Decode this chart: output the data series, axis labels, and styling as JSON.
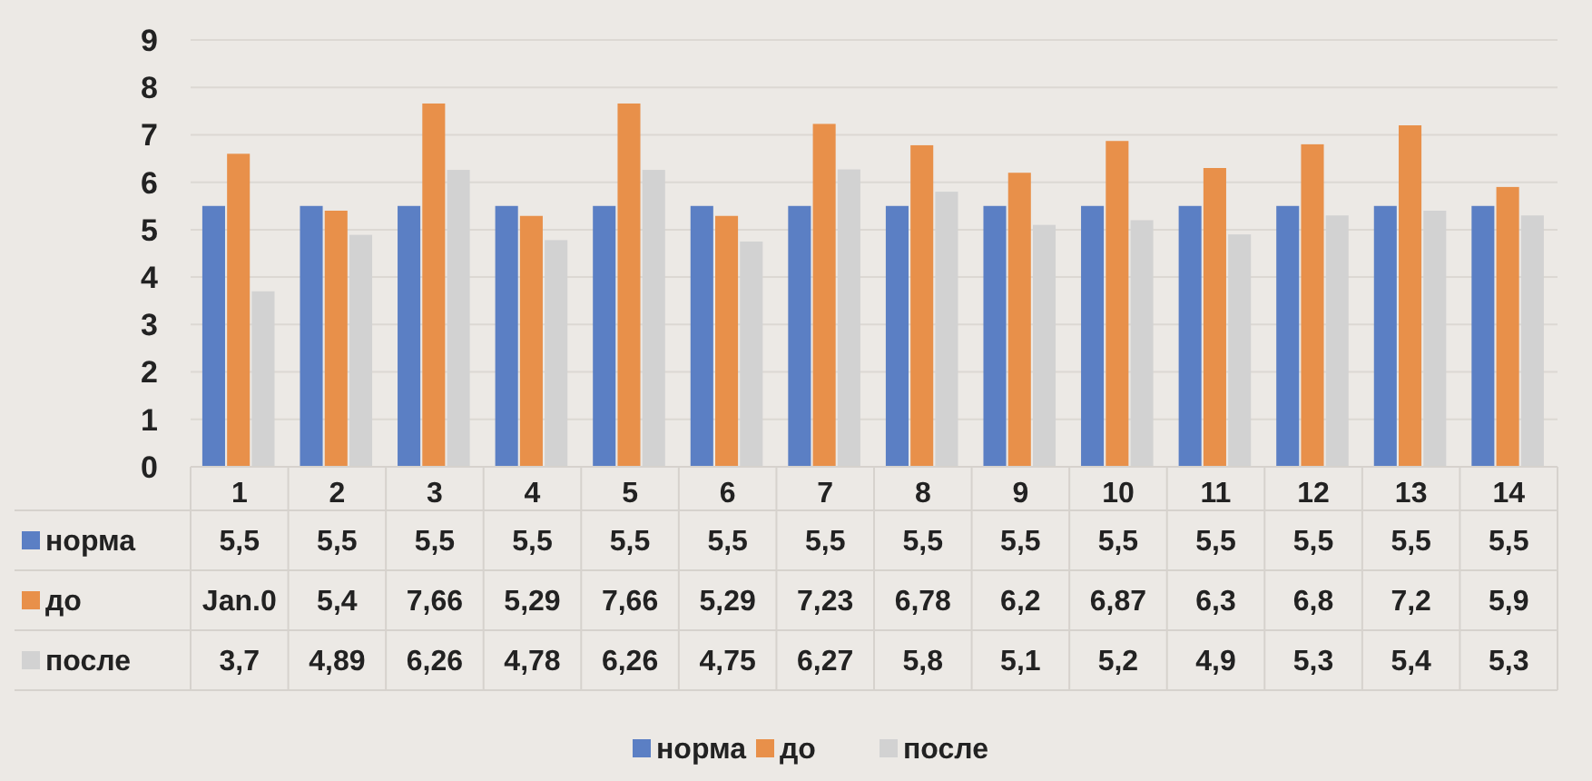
{
  "chart_data": {
    "type": "bar",
    "categories": [
      "1",
      "2",
      "3",
      "4",
      "5",
      "6",
      "7",
      "8",
      "9",
      "10",
      "11",
      "12",
      "13",
      "14"
    ],
    "series": [
      {
        "name": "норма",
        "color": "#5b7fc4",
        "values": [
          5.5,
          5.5,
          5.5,
          5.5,
          5.5,
          5.5,
          5.5,
          5.5,
          5.5,
          5.5,
          5.5,
          5.5,
          5.5,
          5.5
        ],
        "value_labels": [
          "5,5",
          "5,5",
          "5,5",
          "5,5",
          "5,5",
          "5,5",
          "5,5",
          "5,5",
          "5,5",
          "5,5",
          "5,5",
          "5,5",
          "5,5",
          "5,5"
        ]
      },
      {
        "name": "до",
        "color": "#e8904a",
        "values": [
          6.6,
          5.4,
          7.66,
          5.29,
          7.66,
          5.29,
          7.23,
          6.78,
          6.2,
          6.87,
          6.3,
          6.8,
          7.2,
          5.9
        ],
        "value_labels": [
          "Jan.0",
          "5,4",
          "7,66",
          "5,29",
          "7,66",
          "5,29",
          "7,23",
          "6,78",
          "6,2",
          "6,87",
          "6,3",
          "6,8",
          "7,2",
          "5,9"
        ]
      },
      {
        "name": "после",
        "color": "#d2d2d2",
        "values": [
          3.7,
          4.89,
          6.26,
          4.78,
          6.26,
          4.75,
          6.27,
          5.8,
          5.1,
          5.2,
          4.9,
          5.3,
          5.4,
          5.3
        ],
        "value_labels": [
          "3,7",
          "4,89",
          "6,26",
          "4,78",
          "6,26",
          "4,75",
          "6,27",
          "5,8",
          "5,1",
          "5,2",
          "4,9",
          "5,3",
          "5,4",
          "5,3"
        ]
      }
    ],
    "ylim": [
      0,
      9
    ],
    "yticks": [
      0,
      1,
      2,
      3,
      4,
      5,
      6,
      7,
      8,
      9
    ],
    "grid": "y",
    "legend": "bottom"
  }
}
